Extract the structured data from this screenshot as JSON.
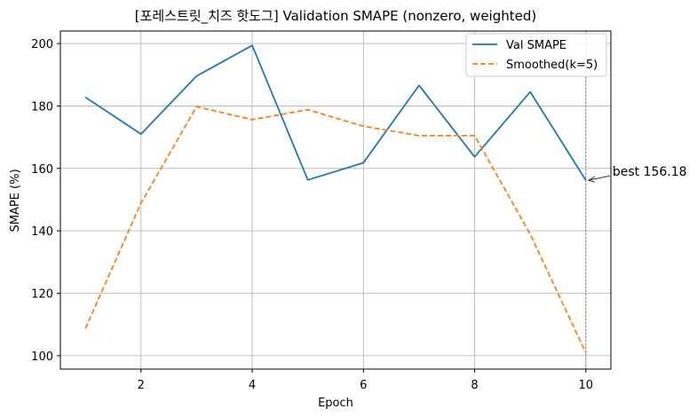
{
  "chart_data": {
    "type": "line",
    "title": "[포레스트릿_치즈 핫도그] Validation SMAPE (nonzero, weighted)",
    "xlabel": "Epoch",
    "ylabel": "SMAPE (%)",
    "x": [
      1,
      2,
      3,
      4,
      5,
      6,
      7,
      8,
      9,
      10
    ],
    "xlim": [
      0.55,
      10.45
    ],
    "ylim": [
      95.7,
      204.0
    ],
    "xticks": [
      2,
      4,
      6,
      8,
      10
    ],
    "yticks": [
      100,
      120,
      140,
      160,
      180,
      200
    ],
    "grid": true,
    "legend_position": "top-right",
    "series": [
      {
        "name": "Val SMAPE",
        "style": "solid",
        "color": "#1f77b4",
        "values": [
          182.8,
          171.0,
          189.6,
          199.4,
          156.3,
          161.8,
          186.6,
          163.7,
          184.5,
          156.18
        ]
      },
      {
        "name": "Smoothed(k=5)",
        "style": "dashed",
        "color": "#ff7f0e",
        "values": [
          108.7,
          148.9,
          179.8,
          175.6,
          178.8,
          173.5,
          170.5,
          170.5,
          138.9,
          100.9
        ]
      }
    ],
    "best_marker": {
      "x": 10,
      "y": 156.18,
      "label": "best 156.18"
    }
  }
}
